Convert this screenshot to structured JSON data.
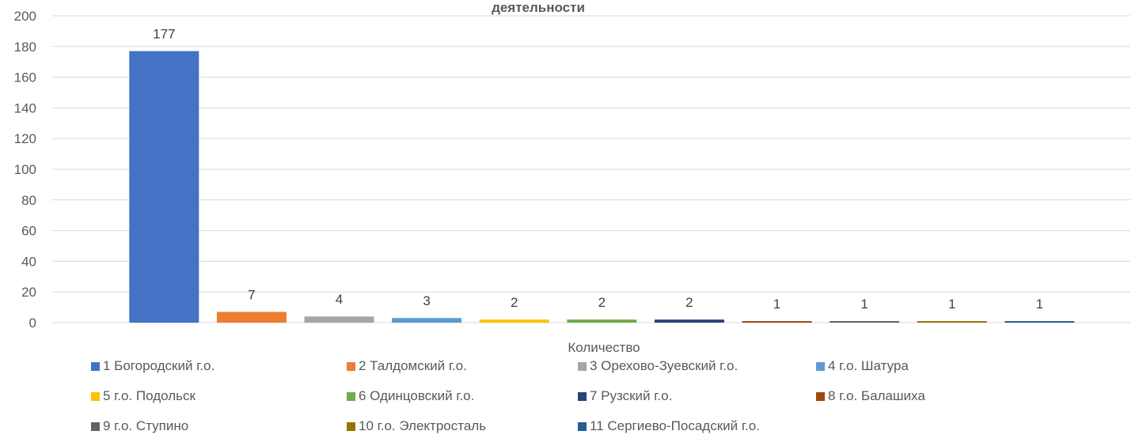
{
  "chart_data": {
    "type": "bar",
    "title": "деятельности",
    "x_category_label": "Количество",
    "ylim": [
      0,
      200
    ],
    "yticks": [
      "0",
      "20",
      "40",
      "60",
      "80",
      "100",
      "120",
      "140",
      "160",
      "180",
      "200"
    ],
    "grid": true,
    "legend_position": "bottom",
    "series": [
      {
        "name": "1 Богородский г.о.",
        "value": 177,
        "color": "#4472C4"
      },
      {
        "name": "2 Талдомский г.о.",
        "value": 7,
        "color": "#ED7D31"
      },
      {
        "name": "3 Орехово-Зуевский г.о.",
        "value": 4,
        "color": "#A5A5A5"
      },
      {
        "name": "4 г.о. Шатура",
        "value": 3,
        "color": "#5B9BD5"
      },
      {
        "name": "5 г.о. Подольск",
        "value": 2,
        "color": "#FFC000"
      },
      {
        "name": "6 Одинцовский г.о.",
        "value": 2,
        "color": "#70AD47"
      },
      {
        "name": "7 Рузский г.о.",
        "value": 2,
        "color": "#264478"
      },
      {
        "name": "8 г.о. Балашиха",
        "value": 1,
        "color": "#9E480E"
      },
      {
        "name": "9 г.о. Ступино",
        "value": 1,
        "color": "#636363"
      },
      {
        "name": "10 г.о. Электросталь",
        "value": 1,
        "color": "#997300"
      },
      {
        "name": "11 Сергиево-Посадский г.о.",
        "value": 1,
        "color": "#255E91"
      }
    ]
  }
}
